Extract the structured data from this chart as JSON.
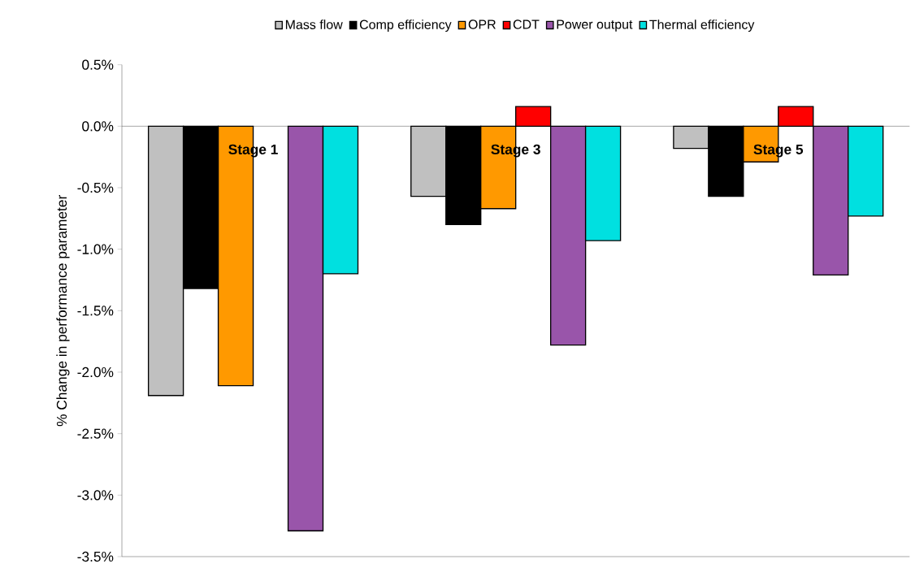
{
  "chart_data": {
    "type": "bar",
    "ylabel": "% Change in performance parameter",
    "categories": [
      "Stage 1",
      "Stage 3",
      "Stage 5"
    ],
    "series": [
      {
        "name": "Mass flow",
        "color": "#c0c0c0",
        "values": [
          -2.19,
          -0.57,
          -0.18
        ]
      },
      {
        "name": "Comp efficiency",
        "color": "#000000",
        "values": [
          -1.32,
          -0.8,
          -0.57
        ]
      },
      {
        "name": "OPR",
        "color": "#ff9900",
        "values": [
          -2.11,
          -0.67,
          -0.29
        ]
      },
      {
        "name": "CDT",
        "color": "#ff0000",
        "values": [
          null,
          0.16,
          0.16
        ]
      },
      {
        "name": "Power output",
        "color": "#9955aa",
        "values": [
          -3.29,
          -1.78,
          -1.21
        ]
      },
      {
        "name": "Thermal efficiency",
        "color": "#00e0e0",
        "values": [
          -1.2,
          -0.93,
          -0.73
        ]
      }
    ],
    "ylim": [
      -3.5,
      0.5
    ],
    "yticks": [
      {
        "value": 0.5,
        "label": "0.5%"
      },
      {
        "value": 0.0,
        "label": "0.0%"
      },
      {
        "value": -0.5,
        "label": "-0.5%"
      },
      {
        "value": -1.0,
        "label": "-1.0%"
      },
      {
        "value": -1.5,
        "label": "-1.5%"
      },
      {
        "value": -2.0,
        "label": "-2.0%"
      },
      {
        "value": -2.5,
        "label": "-2.5%"
      },
      {
        "value": -3.0,
        "label": "-3.0%"
      },
      {
        "value": -3.5,
        "label": "-3.5%"
      }
    ],
    "legend": "top",
    "grid": false
  }
}
